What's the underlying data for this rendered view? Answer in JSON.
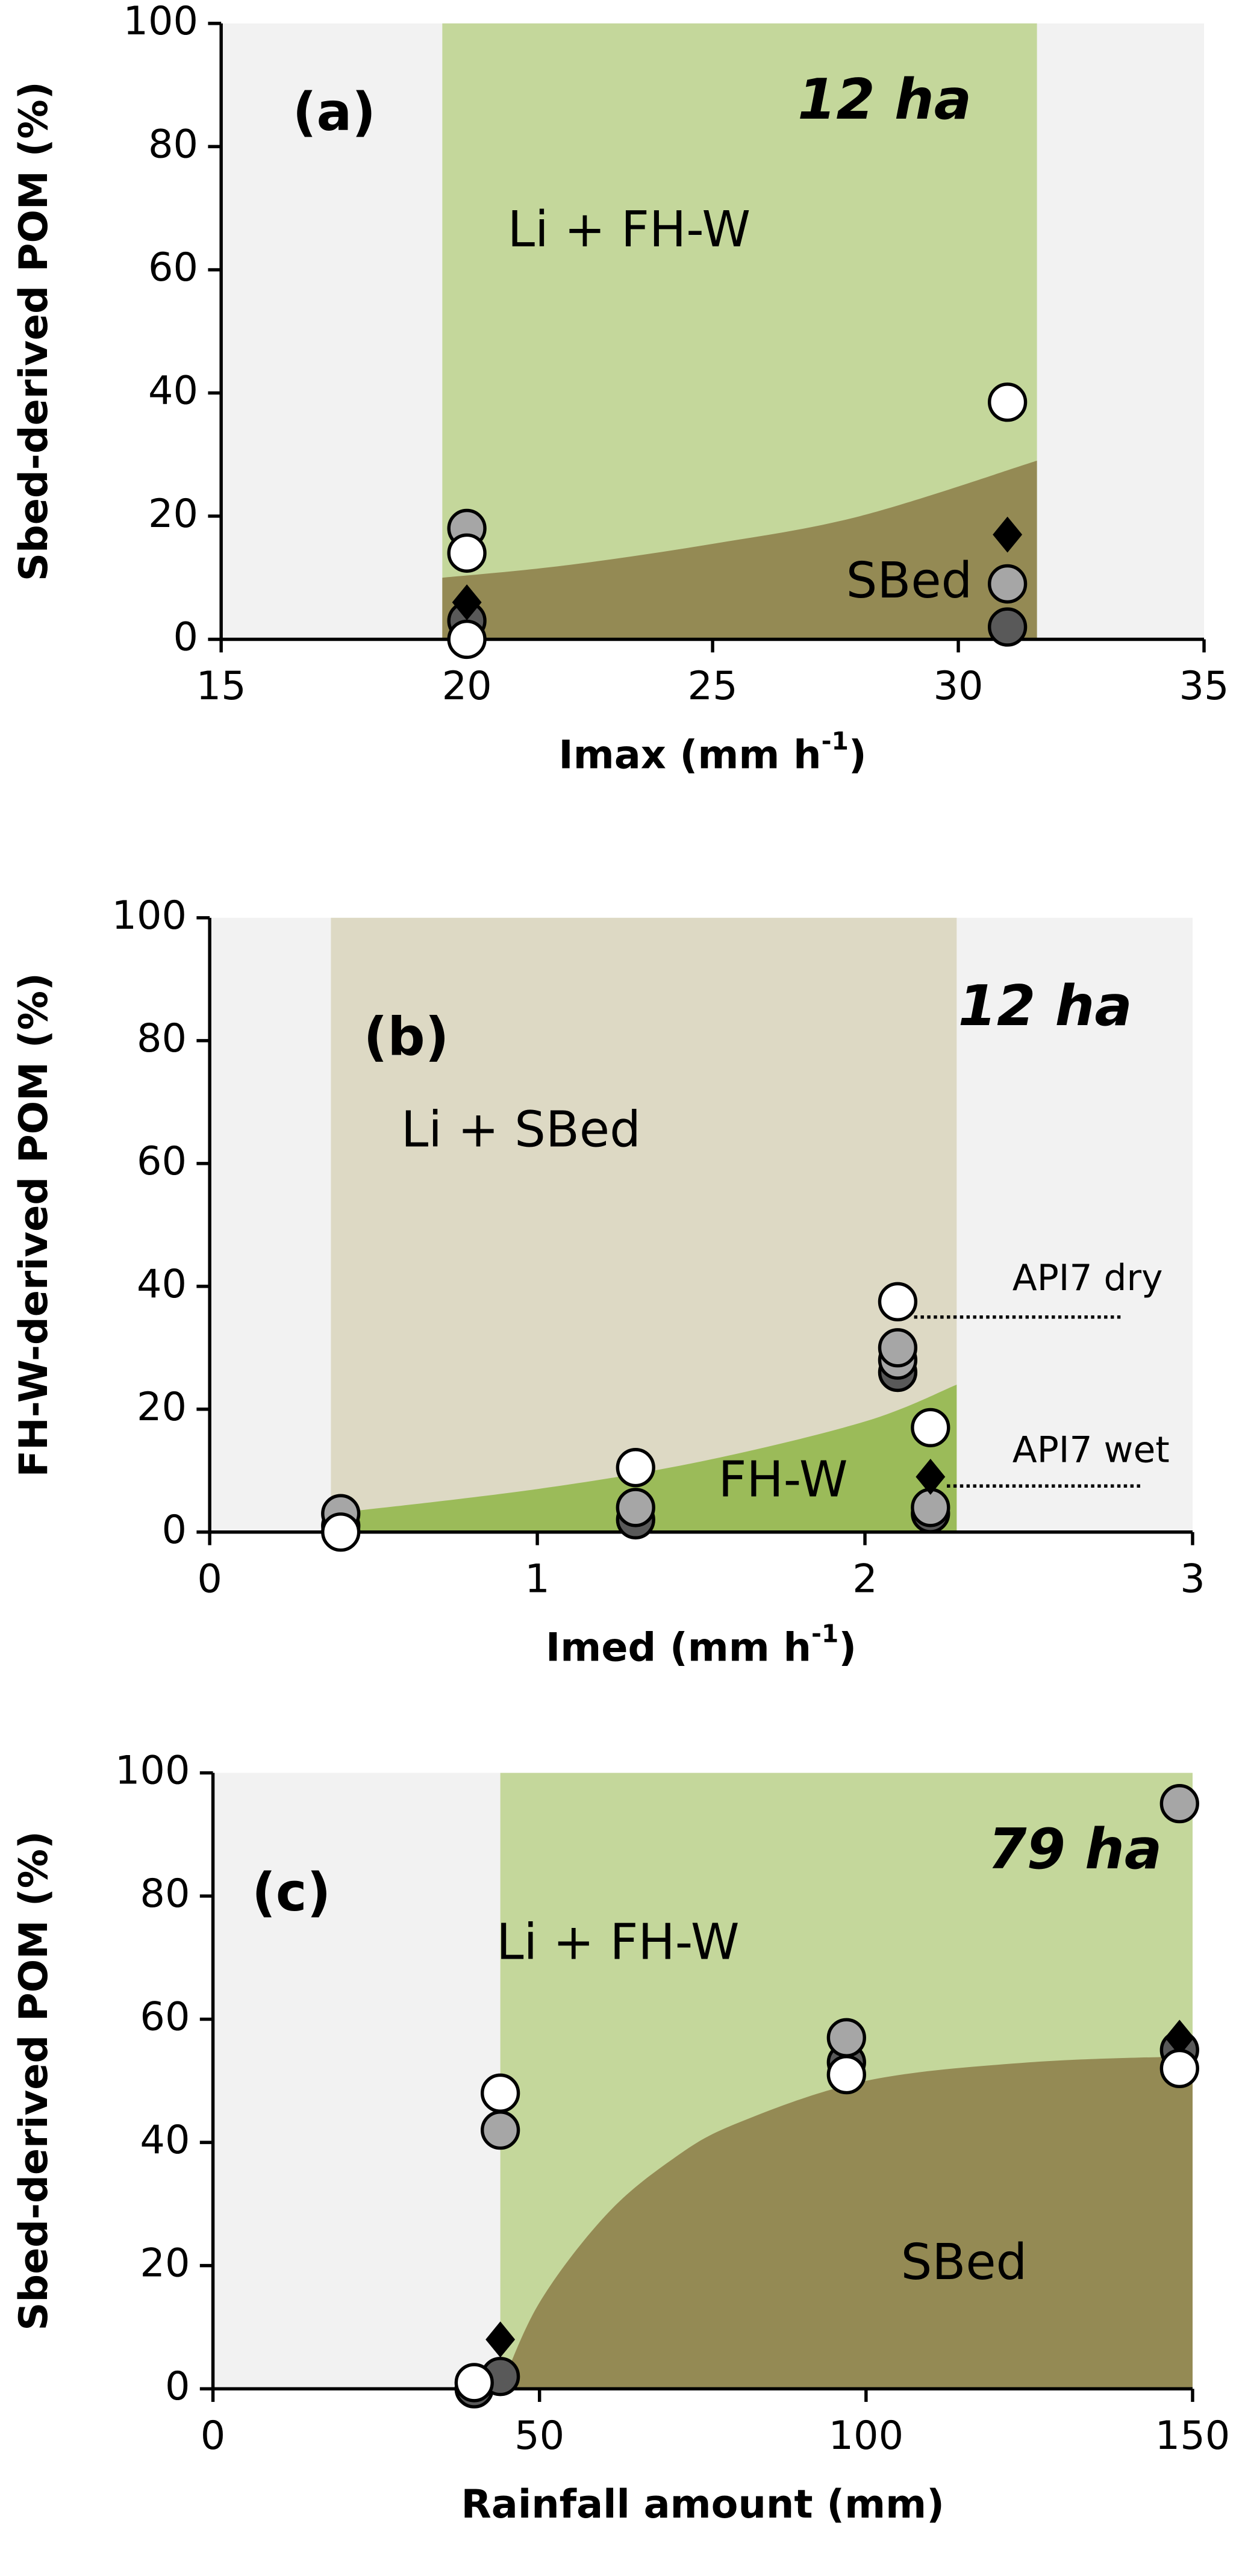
{
  "chart_data": [
    {
      "type": "scatter",
      "panel_label": "(a)",
      "area_label": "12 ha",
      "upper_label": "Li + FH-W",
      "lower_label": "SBed",
      "ylabel": "Sbed-derived POM (%)",
      "xlabel": [
        "Imax (mm h",
        "-1",
        ")"
      ],
      "xlim": [
        15,
        35
      ],
      "xticks": [
        15,
        20,
        25,
        30,
        35
      ],
      "ylim": [
        0,
        100
      ],
      "yticks": [
        0,
        20,
        40,
        60,
        80,
        100
      ],
      "background": "#f2f2f2",
      "band": [
        19.5,
        31.6
      ],
      "band_color": "#c4d79b",
      "boundary": {
        "color": "#948a54",
        "x": [
          19.5,
          22,
          25,
          28,
          31.6
        ],
        "values": [
          10,
          12,
          15.5,
          20,
          29
        ]
      },
      "series": [
        {
          "marker": "circle",
          "color": "#595959",
          "x": [
            20,
            31
          ],
          "values": [
            3,
            2
          ]
        },
        {
          "marker": "circle",
          "color": "#a6a6a6",
          "x": [
            20,
            31
          ],
          "values": [
            18,
            9
          ]
        },
        {
          "marker": "diamond",
          "color": "#000000",
          "x": [
            20,
            31
          ],
          "values": [
            6,
            17
          ]
        },
        {
          "marker": "circle",
          "color": "#ffffff",
          "x": [
            20,
            20,
            31
          ],
          "values": [
            14,
            0,
            38.5
          ]
        }
      ]
    },
    {
      "type": "scatter",
      "panel_label": "(b)",
      "area_label": "12 ha",
      "upper_label": "Li + SBed",
      "lower_label": "FH-W",
      "ylabel": "FH-W-derived POM (%)",
      "xlabel": [
        "Imed (mm h",
        "-1",
        ")"
      ],
      "xlim": [
        0,
        3
      ],
      "xticks": [
        0,
        1,
        2,
        3
      ],
      "ylim": [
        0,
        100
      ],
      "yticks": [
        0,
        20,
        40,
        60,
        80,
        100
      ],
      "background": "#f2f2f2",
      "band": [
        0.37,
        2.28
      ],
      "band_color": "#ddd9c4",
      "boundary": {
        "color": "#9bbb59",
        "x": [
          0.37,
          1,
          1.5,
          2,
          2.28
        ],
        "values": [
          3,
          7,
          11.5,
          18,
          24
        ]
      },
      "annotations": [
        "API7 dry",
        "API7 wet"
      ],
      "series": [
        {
          "marker": "circle",
          "color": "#595959",
          "x": [
            0.4,
            1.3,
            2.1,
            2.2
          ],
          "values": [
            1,
            2,
            26,
            3
          ]
        },
        {
          "marker": "circle",
          "color": "#a6a6a6",
          "x": [
            0.4,
            1.3,
            2.1,
            2.1,
            2.2
          ],
          "values": [
            3,
            4,
            28,
            30,
            4
          ]
        },
        {
          "marker": "diamond",
          "color": "#000000",
          "x": [
            2.2
          ],
          "values": [
            9
          ]
        },
        {
          "marker": "circle",
          "color": "#ffffff",
          "x": [
            0.4,
            1.3,
            2.1,
            2.2
          ],
          "values": [
            0,
            10.5,
            37.5,
            17
          ]
        }
      ]
    },
    {
      "type": "scatter",
      "panel_label": "(c)",
      "area_label": "79 ha",
      "upper_label": "Li + FH-W",
      "lower_label": "SBed",
      "ylabel": "Sbed-derived POM (%)",
      "xlabel": [
        "Rainfall amount (mm)"
      ],
      "xlim": [
        0,
        150
      ],
      "xticks": [
        0,
        50,
        100,
        150
      ],
      "ylim": [
        0,
        100
      ],
      "yticks": [
        0,
        20,
        40,
        60,
        80,
        100
      ],
      "background": "#f2f2f2",
      "band": [
        44,
        150
      ],
      "band_color": "#c4d79b",
      "boundary": {
        "color": "#948a54",
        "x": [
          44,
          50,
          60,
          70,
          80,
          100,
          125,
          150
        ],
        "values": [
          0,
          14,
          28,
          37,
          43,
          50,
          53,
          54
        ]
      },
      "series": [
        {
          "marker": "circle",
          "color": "#595959",
          "x": [
            40,
            44,
            97,
            148
          ],
          "values": [
            0,
            2,
            53,
            55
          ]
        },
        {
          "marker": "circle",
          "color": "#a6a6a6",
          "x": [
            44,
            97,
            148
          ],
          "values": [
            42,
            57,
            95
          ]
        },
        {
          "marker": "diamond",
          "color": "#000000",
          "x": [
            44,
            148
          ],
          "values": [
            8,
            57
          ]
        },
        {
          "marker": "circle",
          "color": "#ffffff",
          "x": [
            40,
            44,
            97,
            148
          ],
          "values": [
            1,
            48,
            51,
            52
          ]
        }
      ]
    }
  ]
}
